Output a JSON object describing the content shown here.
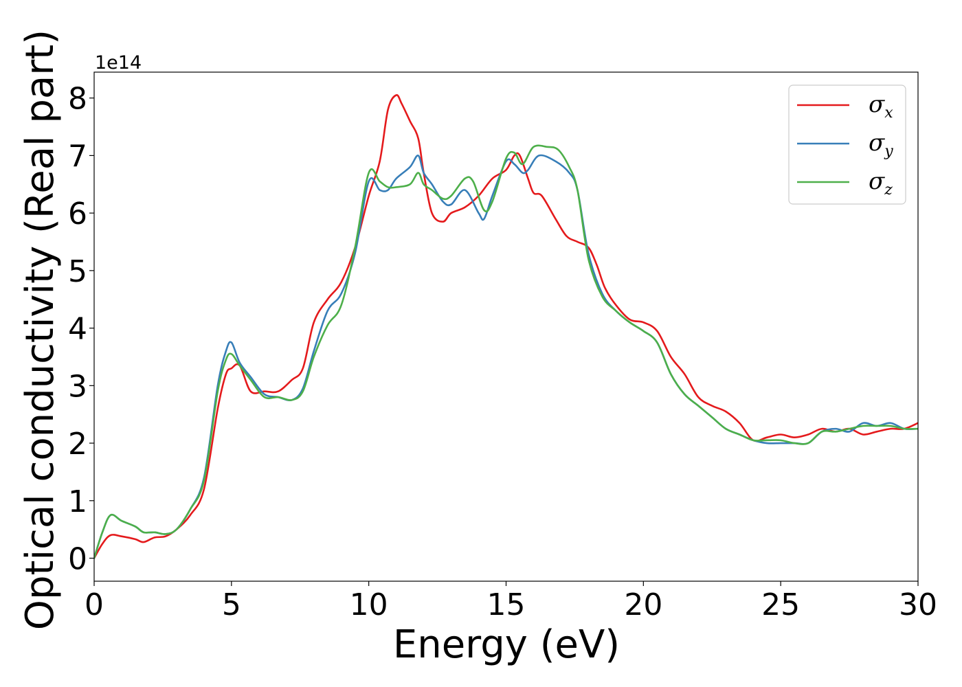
{
  "chart_data": {
    "type": "line",
    "title": "",
    "xlabel": "Energy (eV)",
    "ylabel": "Optical conductivity (Real part)",
    "y_offset_label": "1e14",
    "y_scale": 100000000000000.0,
    "xlim": [
      0,
      30
    ],
    "ylim": [
      -0.4,
      8.45
    ],
    "x_ticks": [
      0,
      5,
      10,
      15,
      20,
      25,
      30
    ],
    "y_ticks": [
      0,
      1,
      2,
      3,
      4,
      5,
      6,
      7,
      8
    ],
    "grid": false,
    "legend_position": "top-right",
    "series": [
      {
        "name": "σx",
        "label_main": "σ",
        "label_sub": "x",
        "color": "#e41a1c",
        "x": [
          0,
          0.3,
          0.6,
          1,
          1.5,
          1.8,
          2.2,
          2.6,
          3,
          3.5,
          4,
          4.5,
          4.8,
          5,
          5.3,
          5.7,
          6.2,
          6.7,
          7.2,
          7.6,
          8,
          8.5,
          9,
          9.5,
          10,
          10.4,
          10.7,
          11,
          11.2,
          11.5,
          11.8,
          12,
          12.3,
          12.7,
          13,
          13.5,
          14,
          14.5,
          15,
          15.3,
          15.5,
          15.8,
          16,
          16.3,
          16.8,
          17.2,
          17.6,
          18,
          18.3,
          18.6,
          19,
          19.5,
          20,
          20.5,
          21,
          21.5,
          22,
          22.5,
          23,
          23.5,
          24,
          24.5,
          25,
          25.5,
          26,
          26.5,
          27,
          27.5,
          28,
          28.5,
          29,
          29.5,
          30
        ],
        "values": [
          0,
          0.25,
          0.4,
          0.38,
          0.33,
          0.28,
          0.36,
          0.38,
          0.5,
          0.75,
          1.2,
          2.6,
          3.2,
          3.3,
          3.35,
          2.9,
          2.9,
          2.9,
          3.1,
          3.3,
          4.1,
          4.5,
          4.8,
          5.4,
          6.3,
          6.9,
          7.8,
          8.05,
          7.9,
          7.6,
          7.3,
          6.7,
          6.0,
          5.85,
          6.0,
          6.1,
          6.3,
          6.6,
          6.75,
          7.0,
          7.0,
          6.6,
          6.35,
          6.3,
          5.9,
          5.6,
          5.5,
          5.4,
          5.1,
          4.7,
          4.4,
          4.15,
          4.1,
          3.95,
          3.5,
          3.2,
          2.8,
          2.65,
          2.55,
          2.35,
          2.05,
          2.1,
          2.15,
          2.1,
          2.15,
          2.25,
          2.2,
          2.25,
          2.15,
          2.2,
          2.25,
          2.25,
          2.35
        ]
      },
      {
        "name": "σy",
        "label_main": "σ",
        "label_sub": "y",
        "color": "#377eb8",
        "x": [
          0,
          0.3,
          0.6,
          1,
          1.5,
          1.8,
          2.2,
          2.6,
          3,
          3.5,
          4,
          4.5,
          4.8,
          5,
          5.3,
          5.7,
          6.2,
          6.7,
          7.2,
          7.6,
          8,
          8.5,
          9,
          9.5,
          10,
          10.4,
          10.7,
          11,
          11.5,
          11.8,
          12,
          12.3,
          12.7,
          13,
          13.5,
          14,
          14.2,
          14.5,
          15,
          15.3,
          15.6,
          15.8,
          16.2,
          16.8,
          17.3,
          17.6,
          18,
          18.5,
          19,
          19.5,
          20,
          20.5,
          21,
          21.5,
          22,
          22.5,
          23,
          23.5,
          24,
          24.5,
          25,
          25.5,
          26,
          26.5,
          27,
          27.5,
          28,
          28.5,
          29,
          29.5,
          30
        ],
        "values": [
          0,
          0.45,
          0.75,
          0.65,
          0.55,
          0.45,
          0.45,
          0.42,
          0.5,
          0.85,
          1.4,
          3.0,
          3.6,
          3.75,
          3.4,
          3.15,
          2.85,
          2.8,
          2.75,
          2.95,
          3.6,
          4.3,
          4.6,
          5.3,
          6.55,
          6.4,
          6.4,
          6.6,
          6.8,
          7.0,
          6.7,
          6.5,
          6.2,
          6.15,
          6.4,
          6.0,
          5.9,
          6.3,
          6.9,
          6.85,
          6.7,
          6.75,
          7.0,
          6.9,
          6.7,
          6.4,
          5.3,
          4.6,
          4.3,
          4.1,
          3.95,
          3.75,
          3.2,
          2.85,
          2.65,
          2.45,
          2.25,
          2.15,
          2.05,
          2.0,
          2.0,
          2.0,
          2.0,
          2.2,
          2.25,
          2.2,
          2.35,
          2.3,
          2.35,
          2.25,
          2.25
        ]
      },
      {
        "name": "σz",
        "label_main": "σ",
        "label_sub": "z",
        "color": "#4daf4a",
        "x": [
          0,
          0.3,
          0.6,
          1,
          1.5,
          1.8,
          2.2,
          2.6,
          3,
          3.5,
          4,
          4.5,
          4.8,
          5,
          5.3,
          5.7,
          6.2,
          6.7,
          7.2,
          7.6,
          8,
          8.5,
          9,
          9.5,
          10,
          10.4,
          10.7,
          11,
          11.5,
          11.8,
          12,
          12.3,
          12.7,
          13,
          13.5,
          13.8,
          14.2,
          14.5,
          15,
          15.3,
          15.6,
          16,
          16.5,
          16.9,
          17.3,
          17.6,
          18,
          18.5,
          19,
          19.5,
          20,
          20.5,
          21,
          21.5,
          22,
          22.5,
          23,
          23.5,
          24,
          24.5,
          25,
          25.5,
          26,
          26.5,
          27,
          27.5,
          28,
          28.5,
          29,
          29.5,
          30
        ],
        "values": [
          0,
          0.45,
          0.75,
          0.65,
          0.55,
          0.45,
          0.45,
          0.42,
          0.5,
          0.85,
          1.35,
          2.9,
          3.45,
          3.55,
          3.35,
          3.1,
          2.8,
          2.8,
          2.75,
          2.9,
          3.5,
          4.05,
          4.4,
          5.4,
          6.7,
          6.55,
          6.45,
          6.45,
          6.5,
          6.7,
          6.5,
          6.4,
          6.25,
          6.3,
          6.6,
          6.55,
          6.05,
          6.2,
          6.95,
          7.05,
          6.85,
          7.15,
          7.15,
          7.1,
          6.8,
          6.4,
          5.2,
          4.55,
          4.3,
          4.1,
          3.95,
          3.75,
          3.2,
          2.85,
          2.65,
          2.45,
          2.25,
          2.15,
          2.05,
          2.05,
          2.05,
          2.0,
          2.0,
          2.2,
          2.2,
          2.25,
          2.3,
          2.3,
          2.3,
          2.25,
          2.25
        ]
      }
    ]
  }
}
